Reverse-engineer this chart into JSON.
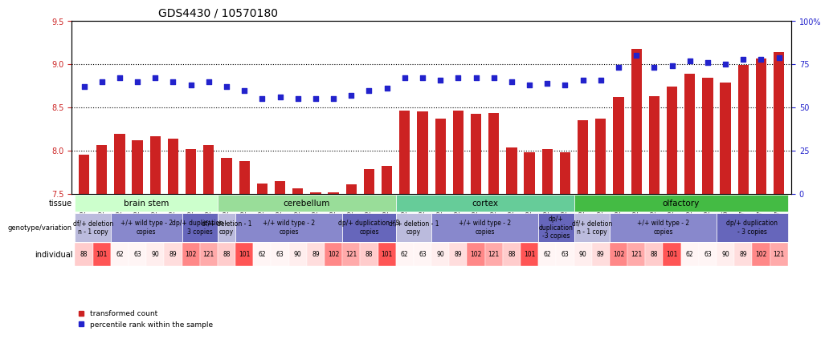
{
  "title": "GDS4430 / 10570180",
  "ylim_left": [
    7.5,
    9.5
  ],
  "ylim_right": [
    0,
    100
  ],
  "yticks_left": [
    7.5,
    8.0,
    8.5,
    9.0,
    9.5
  ],
  "yticks_right": [
    0,
    25,
    50,
    75,
    100
  ],
  "ytick_right_labels": [
    "0",
    "25",
    "50",
    "75",
    "100%"
  ],
  "bar_color": "#cc2222",
  "dot_color": "#2222cc",
  "bar_values": [
    7.95,
    8.06,
    8.19,
    8.12,
    8.17,
    8.14,
    8.02,
    8.06,
    7.92,
    7.88,
    7.62,
    7.65,
    7.56,
    7.52,
    7.52,
    7.61,
    7.79,
    7.82,
    8.46,
    8.45,
    8.37,
    8.46,
    8.43,
    8.44,
    8.04,
    7.98,
    8.02,
    7.98,
    8.35,
    8.37,
    8.62,
    9.18,
    8.63,
    8.74,
    8.89,
    8.84,
    8.79,
    8.99,
    9.07,
    9.14
  ],
  "dot_values": [
    62,
    65,
    67,
    65,
    67,
    65,
    63,
    65,
    62,
    60,
    55,
    56,
    55,
    55,
    55,
    57,
    60,
    61,
    67,
    67,
    66,
    67,
    67,
    67,
    65,
    63,
    64,
    63,
    66,
    66,
    73,
    80,
    73,
    74,
    77,
    76,
    75,
    78,
    78,
    79
  ],
  "sample_ids": [
    "GSM792717",
    "GSM792694",
    "GSM792693",
    "GSM792713",
    "GSM792724",
    "GSM792721",
    "GSM792700",
    "GSM792705",
    "GSM792718",
    "GSM792695",
    "GSM792696",
    "GSM792709",
    "GSM792714",
    "GSM792725",
    "GSM792726",
    "GSM792722",
    "GSM792701",
    "GSM792706",
    "GSM792719",
    "GSM792697",
    "GSM792698",
    "GSM792710",
    "GSM792715",
    "GSM792727",
    "GSM792728",
    "GSM792703",
    "GSM792707",
    "GSM792720",
    "GSM792699",
    "GSM792711",
    "GSM792712",
    "GSM792716",
    "GSM792729",
    "GSM792723",
    "GSM792704",
    "GSM792708",
    "GSM792699b",
    "GSM792711b",
    "GSM792712b",
    "GSM792716b"
  ],
  "tissues": [
    {
      "label": "brain stem",
      "start": 0,
      "end": 8,
      "color": "#ccffcc"
    },
    {
      "label": "cerebellum",
      "start": 8,
      "end": 18,
      "color": "#99dd99"
    },
    {
      "label": "cortex",
      "start": 18,
      "end": 28,
      "color": "#66cc99"
    },
    {
      "label": "olfactory",
      "start": 28,
      "end": 40,
      "color": "#44bb44"
    }
  ],
  "genotype_groups": [
    {
      "label": "df/+ deletion\nn - 1 copy",
      "start": 0,
      "end": 2,
      "color": "#bbbbdd"
    },
    {
      "label": "+/+ wild type - 2\ncopies",
      "start": 2,
      "end": 6,
      "color": "#8888cc"
    },
    {
      "label": "dp/+ duplication -\n3 copies",
      "start": 6,
      "end": 8,
      "color": "#6666bb"
    },
    {
      "label": "df/+ deletion - 1\ncopy",
      "start": 8,
      "end": 9,
      "color": "#bbbbdd"
    },
    {
      "label": "+/+ wild type - 2\ncopies",
      "start": 9,
      "end": 15,
      "color": "#8888cc"
    },
    {
      "label": "dp/+ duplication - 3\ncopies",
      "start": 15,
      "end": 18,
      "color": "#6666bb"
    },
    {
      "label": "df/+ deletion - 1\ncopy",
      "start": 18,
      "end": 20,
      "color": "#bbbbdd"
    },
    {
      "label": "+/+ wild type - 2\ncopies",
      "start": 20,
      "end": 26,
      "color": "#8888cc"
    },
    {
      "label": "dp/+\nduplication\n-3 copies",
      "start": 26,
      "end": 28,
      "color": "#6666bb"
    },
    {
      "label": "df/+ deletion\nn - 1 copy",
      "start": 28,
      "end": 30,
      "color": "#bbbbdd"
    },
    {
      "label": "+/+ wild type - 2\ncopies",
      "start": 30,
      "end": 36,
      "color": "#8888cc"
    },
    {
      "label": "dp/+ duplication\n- 3 copies",
      "start": 36,
      "end": 40,
      "color": "#6666bb"
    }
  ],
  "individuals": [
    88,
    101,
    62,
    63,
    90,
    89,
    102,
    121,
    88,
    101,
    62,
    63,
    90,
    89,
    102,
    121,
    88,
    101,
    62,
    63,
    90,
    89,
    102,
    121,
    88,
    101,
    62,
    63,
    90,
    89,
    102,
    121,
    88,
    101,
    62,
    63,
    90,
    89,
    102,
    121
  ],
  "indiv_colors_101": "#ff6666",
  "indiv_colors_102": "#ff9999",
  "indiv_colors_121": "#ffaaaa",
  "indiv_colors_88": "#ffcccc",
  "indiv_colors_other": "#ffeeee",
  "legend_bar_label": "transformed count",
  "legend_dot_label": "percentile rank within the sample"
}
